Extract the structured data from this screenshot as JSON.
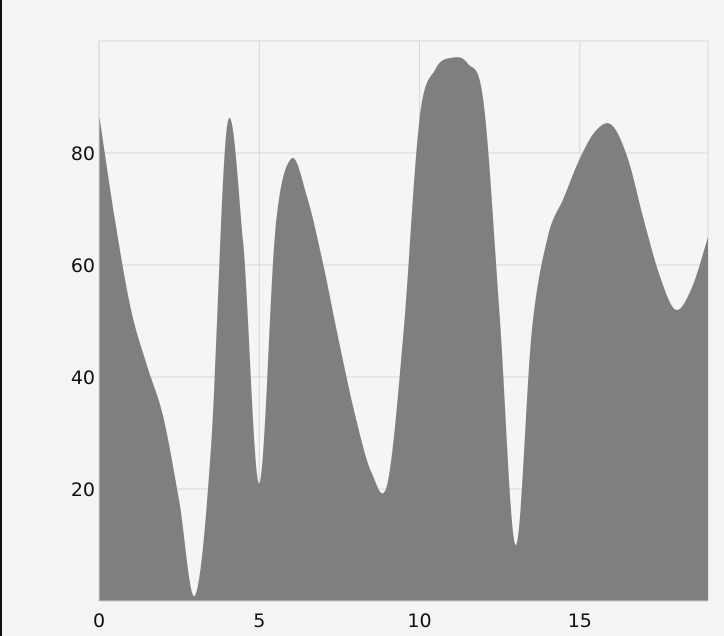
{
  "chart_data": {
    "type": "area",
    "title": "",
    "xlabel": "",
    "ylabel": "",
    "xlim": [
      0,
      19
    ],
    "ylim": [
      0,
      100
    ],
    "grid": true,
    "legend": "none",
    "colors": {
      "background": "#f5f5f5",
      "area": "#7f7f7f",
      "grid": "#d7d7d7",
      "text": "#111111",
      "left_border": "#111111"
    },
    "x_ticks": [
      0,
      5,
      10,
      15
    ],
    "x_tick_labels": [
      "0",
      "5",
      "10",
      "15"
    ],
    "y_ticks": [
      20,
      40,
      60,
      80
    ],
    "y_tick_labels": [
      "20",
      "40",
      "60",
      "80"
    ],
    "series": [
      {
        "x": [
          0,
          0.5,
          1,
          1.5,
          2,
          2.5,
          3,
          3.5,
          4,
          4.5,
          5,
          5.5,
          6,
          6.5,
          7,
          7.5,
          8,
          8.5,
          9,
          9.5,
          10,
          10.5,
          11,
          11.5,
          12,
          12.5,
          13,
          13.5,
          14,
          14.5,
          15,
          15.5,
          16,
          16.5,
          17,
          17.5,
          18,
          18.5,
          19
        ],
        "values": [
          87,
          68,
          52,
          42,
          33,
          18,
          1,
          28,
          85,
          64,
          21,
          66,
          79,
          72,
          60,
          46,
          33,
          23,
          21,
          48,
          86,
          95,
          97,
          96,
          89,
          51,
          10,
          48,
          65,
          72,
          79,
          84,
          85,
          79,
          68,
          58,
          52,
          56,
          65
        ]
      }
    ]
  }
}
